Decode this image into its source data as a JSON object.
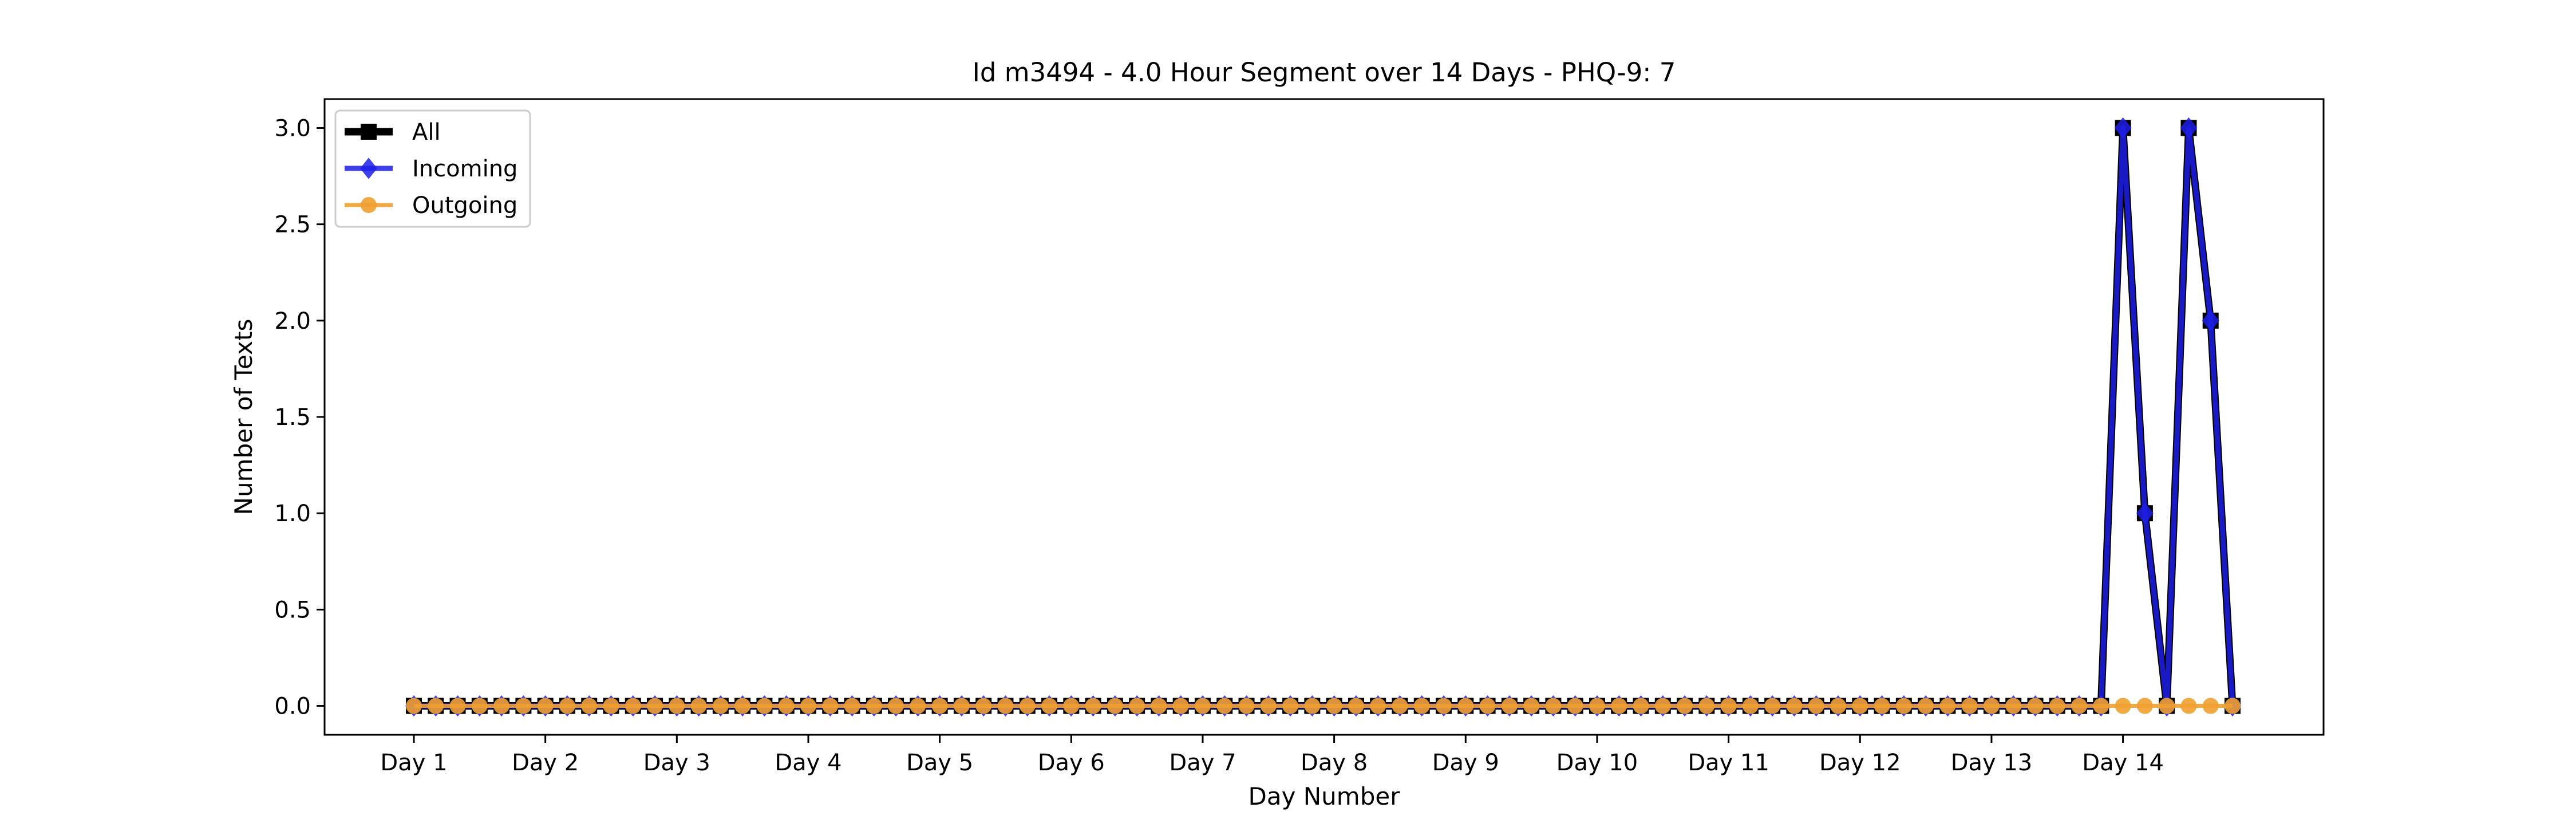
{
  "chart_data": {
    "type": "line",
    "title": "Id m3494 - 4.0 Hour Segment over 14 Days - PHQ-9: 7",
    "xlabel": "Day Number",
    "ylabel": "Number of Texts",
    "ylim": [
      -0.15,
      3.15
    ],
    "yticks": [
      "0.0",
      "0.5",
      "1.0",
      "1.5",
      "2.0",
      "2.5",
      "3.0"
    ],
    "xtick_labels": [
      "Day 1",
      "Day 2",
      "Day 3",
      "Day 4",
      "Day 5",
      "Day 6",
      "Day 7",
      "Day 8",
      "Day 9",
      "Day 10",
      "Day 11",
      "Day 12",
      "Day 13",
      "Day 14"
    ],
    "segments_per_day": 6,
    "grid": false,
    "legend_position": "top-left",
    "series": [
      {
        "name": "All",
        "color": "#000000",
        "marker": "square",
        "values": [
          0,
          0,
          0,
          0,
          0,
          0,
          0,
          0,
          0,
          0,
          0,
          0,
          0,
          0,
          0,
          0,
          0,
          0,
          0,
          0,
          0,
          0,
          0,
          0,
          0,
          0,
          0,
          0,
          0,
          0,
          0,
          0,
          0,
          0,
          0,
          0,
          0,
          0,
          0,
          0,
          0,
          0,
          0,
          0,
          0,
          0,
          0,
          0,
          0,
          0,
          0,
          0,
          0,
          0,
          0,
          0,
          0,
          0,
          0,
          0,
          0,
          0,
          0,
          0,
          0,
          0,
          0,
          0,
          0,
          0,
          0,
          0,
          0,
          0,
          0,
          0,
          0,
          0,
          3,
          1,
          0,
          3,
          2,
          0
        ]
      },
      {
        "name": "Incoming",
        "color": "#1f1fe6",
        "marker": "diamond",
        "values": [
          0,
          0,
          0,
          0,
          0,
          0,
          0,
          0,
          0,
          0,
          0,
          0,
          0,
          0,
          0,
          0,
          0,
          0,
          0,
          0,
          0,
          0,
          0,
          0,
          0,
          0,
          0,
          0,
          0,
          0,
          0,
          0,
          0,
          0,
          0,
          0,
          0,
          0,
          0,
          0,
          0,
          0,
          0,
          0,
          0,
          0,
          0,
          0,
          0,
          0,
          0,
          0,
          0,
          0,
          0,
          0,
          0,
          0,
          0,
          0,
          0,
          0,
          0,
          0,
          0,
          0,
          0,
          0,
          0,
          0,
          0,
          0,
          0,
          0,
          0,
          0,
          0,
          0,
          3,
          1,
          0,
          3,
          2,
          0
        ]
      },
      {
        "name": "Outgoing",
        "color": "#f0a030",
        "marker": "circle",
        "values": [
          0,
          0,
          0,
          0,
          0,
          0,
          0,
          0,
          0,
          0,
          0,
          0,
          0,
          0,
          0,
          0,
          0,
          0,
          0,
          0,
          0,
          0,
          0,
          0,
          0,
          0,
          0,
          0,
          0,
          0,
          0,
          0,
          0,
          0,
          0,
          0,
          0,
          0,
          0,
          0,
          0,
          0,
          0,
          0,
          0,
          0,
          0,
          0,
          0,
          0,
          0,
          0,
          0,
          0,
          0,
          0,
          0,
          0,
          0,
          0,
          0,
          0,
          0,
          0,
          0,
          0,
          0,
          0,
          0,
          0,
          0,
          0,
          0,
          0,
          0,
          0,
          0,
          0,
          0,
          0,
          0,
          0,
          0,
          0
        ]
      }
    ]
  }
}
